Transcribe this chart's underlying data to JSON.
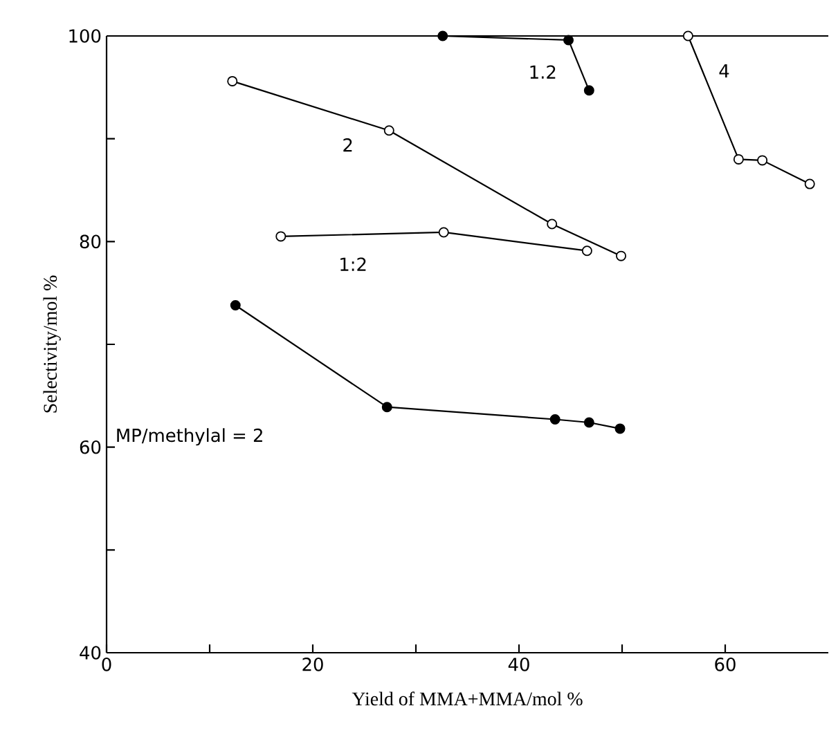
{
  "chart_data": {
    "type": "line",
    "xlabel": "Yield of MMA+MMA/mol %",
    "ylabel": "Selectivity/mol %",
    "xlim": [
      0,
      70
    ],
    "ylim": [
      40,
      100
    ],
    "xticks": [
      0,
      {
        "value": 10,
        "label": null
      },
      20,
      {
        "value": 30,
        "label": null
      },
      40,
      {
        "value": 50,
        "label": null
      },
      60
    ],
    "yticks": [
      40,
      {
        "value": 50,
        "label": null
      },
      60,
      {
        "value": 70,
        "label": null
      },
      80,
      {
        "value": 90,
        "label": null
      },
      100
    ],
    "line_style": "solid",
    "series": [
      {
        "color": "#000000",
        "marker": "circle",
        "x": [
          12.5,
          27.2,
          43.5,
          46.8,
          49.8
        ],
        "values": [
          73.8,
          63.9,
          62.7,
          62.4,
          61.8
        ]
      },
      {
        "color": "#000000",
        "marker": "circle",
        "x": [
          32.6,
          44.8,
          46.8
        ],
        "values": [
          100,
          99.6,
          94.7
        ]
      },
      {
        "color": "#000000",
        "marker": "open circle",
        "x": [
          12.2,
          27.4,
          43.2,
          49.9
        ],
        "values": [
          95.6,
          90.8,
          81.7,
          78.6
        ]
      },
      {
        "color": "#000000",
        "marker": "open circle",
        "x": [
          16.9,
          32.7,
          46.6
        ],
        "values": [
          80.5,
          80.9,
          79.1
        ]
      },
      {
        "color": "#000000",
        "marker": "open circle",
        "x": [
          56.4,
          61.3,
          63.6,
          68.2
        ],
        "values": [
          100,
          88.0,
          87.9,
          85.6
        ]
      }
    ],
    "annotations": [
      "MP/methylal = 2",
      {
        "text": "1.2",
        "x": 42.3,
        "y": 96.5
      },
      {
        "text": "2",
        "x": 23.4,
        "y": 89.4
      },
      {
        "text": "1:2",
        "x": 23.9,
        "y": 77.8
      },
      {
        "text": "4",
        "x": 59.9,
        "y": 96.6
      }
    ]
  }
}
